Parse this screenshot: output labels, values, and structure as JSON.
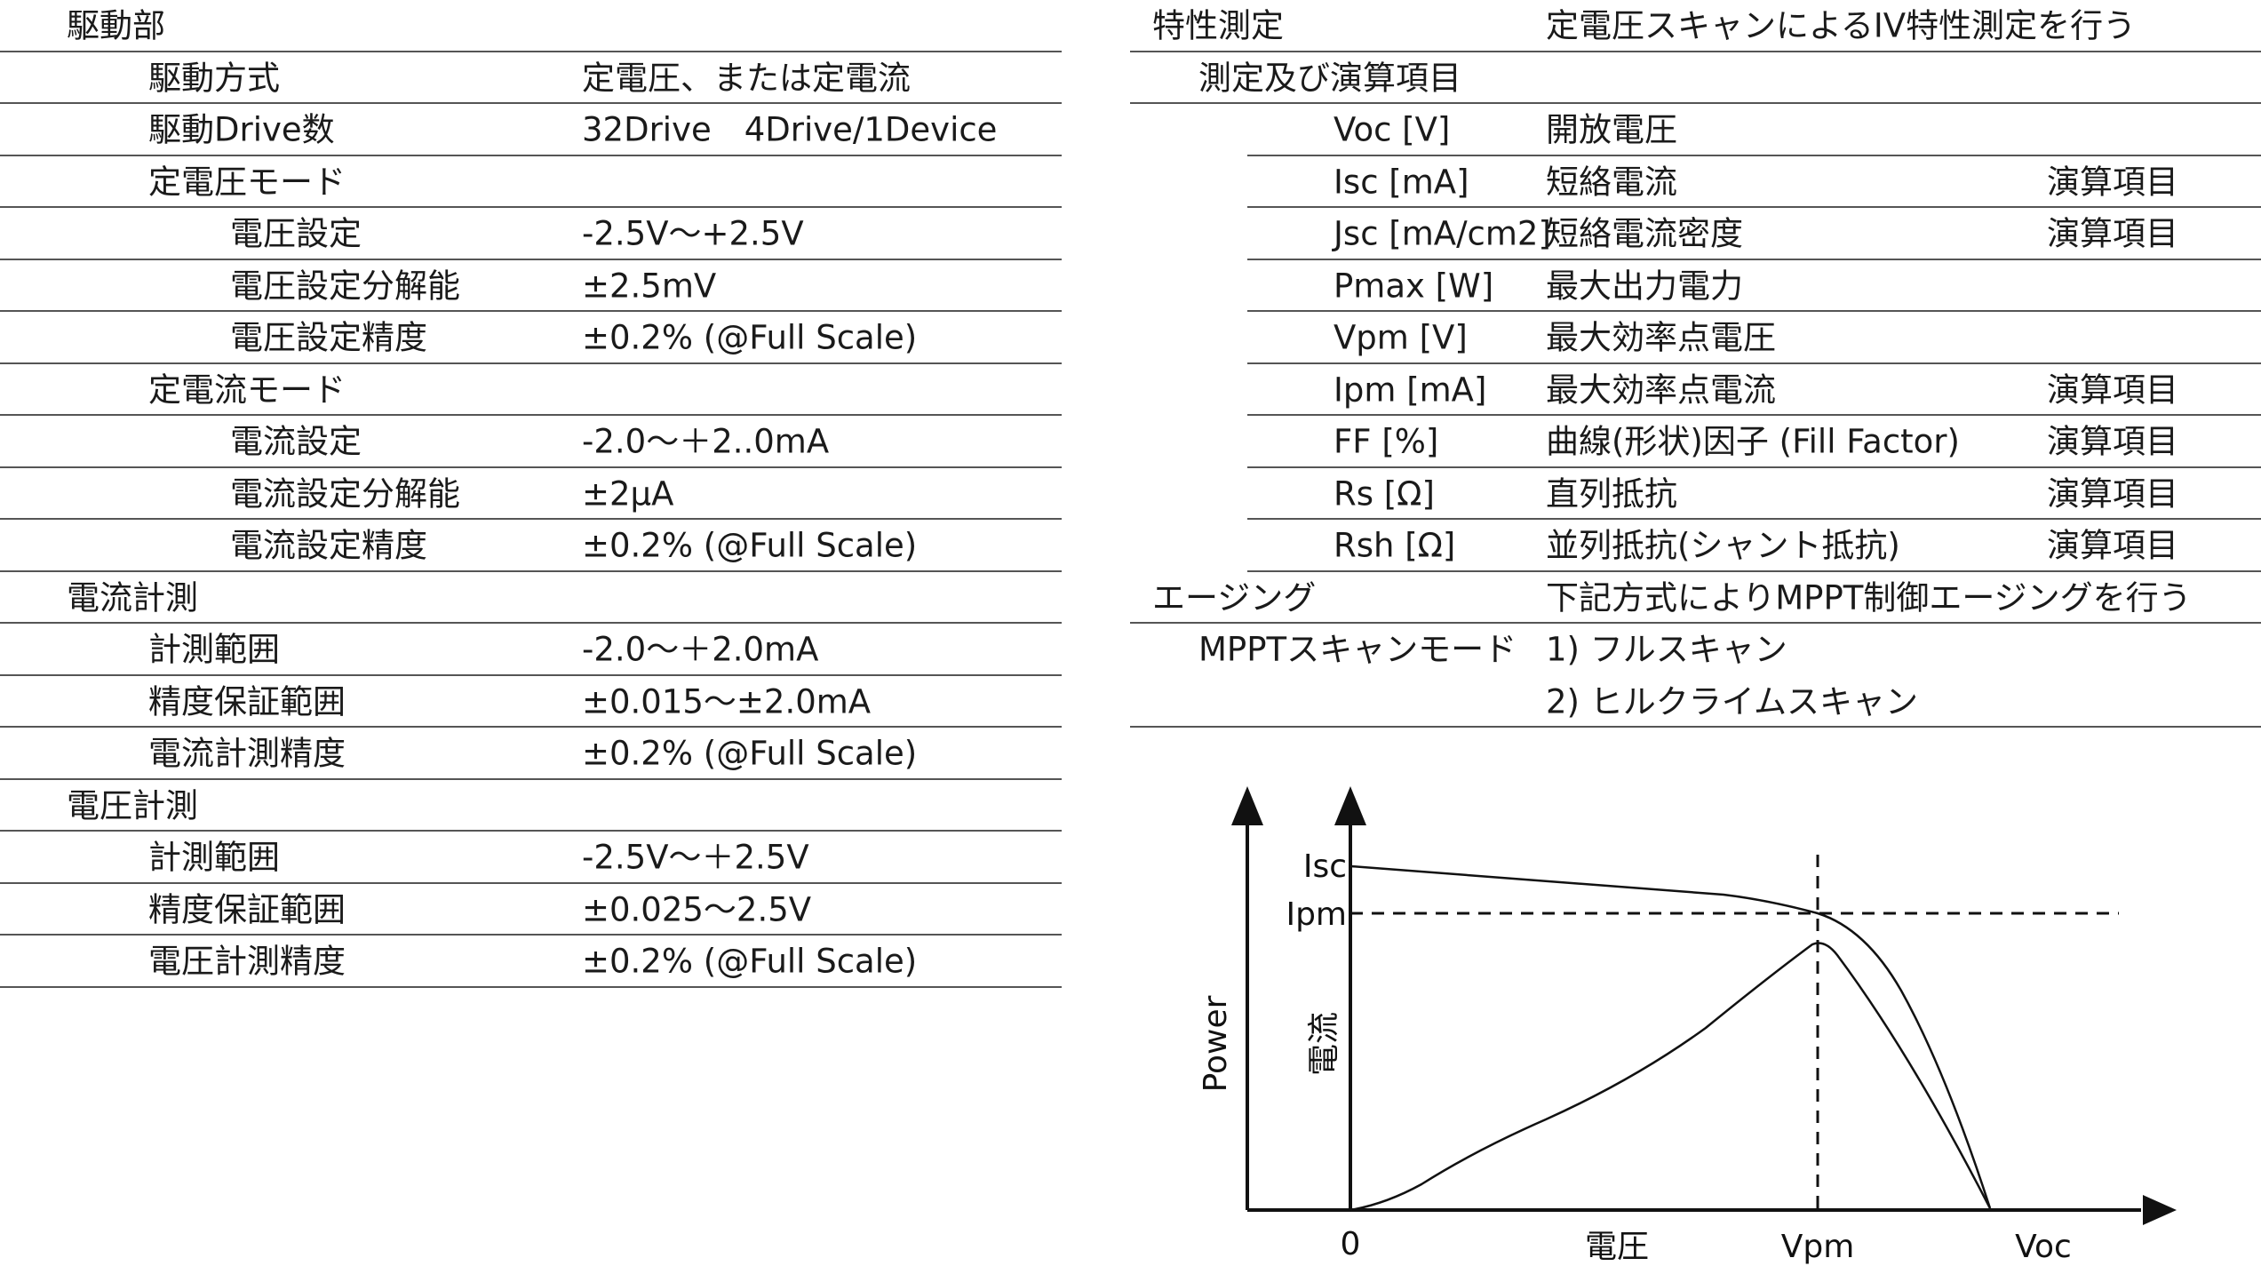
{
  "left_table": {
    "rows": [
      {
        "c1": "駆動部",
        "c2": "",
        "level": 0
      },
      {
        "c1": "駆動方式",
        "c2": "定電圧、または定電流",
        "level": 1
      },
      {
        "c1": "駆動Drive数",
        "c2": "32Drive　4Drive/1Device",
        "level": 1
      },
      {
        "c1": "定電圧モード",
        "c2": "",
        "level": 1
      },
      {
        "c1": "電圧設定",
        "c2": "-2.5V～+2.5V",
        "level": 2
      },
      {
        "c1": "電圧設定分解能",
        "c2": "±2.5mV",
        "level": 2
      },
      {
        "c1": "電圧設定精度",
        "c2": "±0.2% (@Full Scale)",
        "level": 2
      },
      {
        "c1": "定電流モード",
        "c2": "",
        "level": 1
      },
      {
        "c1": "電流設定",
        "c2": "-2.0～＋2..0mA",
        "level": 2
      },
      {
        "c1": "電流設定分解能",
        "c2": "±2μA",
        "level": 2
      },
      {
        "c1": "電流設定精度",
        "c2": "±0.2% (@Full Scale)",
        "level": 2
      },
      {
        "c1": "電流計測",
        "c2": "",
        "level": 0
      },
      {
        "c1": "計測範囲",
        "c2": "-2.0～＋2.0mA",
        "level": 1
      },
      {
        "c1": "精度保証範囲",
        "c2": "±0.015～±2.0mA",
        "level": 1
      },
      {
        "c1": "電流計測精度",
        "c2": "±0.2% (@Full Scale)",
        "level": 1
      },
      {
        "c1": "電圧計測",
        "c2": "",
        "level": 0
      },
      {
        "c1": "計測範囲",
        "c2": "-2.5V～＋2.5V",
        "level": 1
      },
      {
        "c1": "精度保証範囲",
        "c2": "±0.025～2.5V",
        "level": 1
      },
      {
        "c1": "電圧計測精度",
        "c2": "±0.2% (@Full Scale)",
        "level": 1
      }
    ]
  },
  "right_table": {
    "rows": [
      {
        "c1": "特性測定",
        "c2": "定電圧スキャンによるIV特性測定を行う",
        "c3": "",
        "level": 0
      },
      {
        "c1": "測定及び演算項目",
        "c2": "",
        "c3": "",
        "level": 1
      },
      {
        "c1": "Voc [V]",
        "c2": "開放電圧",
        "c3": "",
        "level": 2
      },
      {
        "c1": "Isc [mA]",
        "c2": "短絡電流",
        "c3": "演算項目",
        "level": 2
      },
      {
        "c1": "Jsc [mA/cm2]",
        "c2": "短絡電流密度",
        "c3": "演算項目",
        "level": 2
      },
      {
        "c1": "Pmax [W]",
        "c2": "最大出力電力",
        "c3": "",
        "level": 2
      },
      {
        "c1": "Vpm [V]",
        "c2": "最大効率点電圧",
        "c3": "",
        "level": 2
      },
      {
        "c1": "Ipm [mA]",
        "c2": "最大効率点電流",
        "c3": "演算項目",
        "level": 2
      },
      {
        "c1": "FF [%]",
        "c2": "曲線(形状)因子 (Fill Factor)",
        "c3": "演算項目",
        "level": 2
      },
      {
        "c1": "Rs [Ω]",
        "c2": "直列抵抗",
        "c3": "演算項目",
        "level": 2
      },
      {
        "c1": "Rsh [Ω]",
        "c2": "並列抵抗(シャント抵抗)",
        "c3": "演算項目",
        "level": 2
      },
      {
        "c1": "エージング",
        "c2": "下記方式によりMPPT制御エージングを行う",
        "c3": "",
        "level": 0
      },
      {
        "c1": "MPPTスキャンモード",
        "c2": "1)  フルスキャン",
        "c3": "",
        "level": 1
      },
      {
        "c1": "",
        "c2": "2)  ヒルクライムスキャン",
        "c3": "",
        "level": 1
      }
    ]
  },
  "diagram": {
    "y_left_label": "Power",
    "y_right_label": "電流",
    "isc_label": "Isc",
    "ipm_label": "Ipm",
    "origin_label": "0",
    "x_label": "電圧",
    "vpm_label": "Vpm",
    "voc_label": "Voc"
  }
}
